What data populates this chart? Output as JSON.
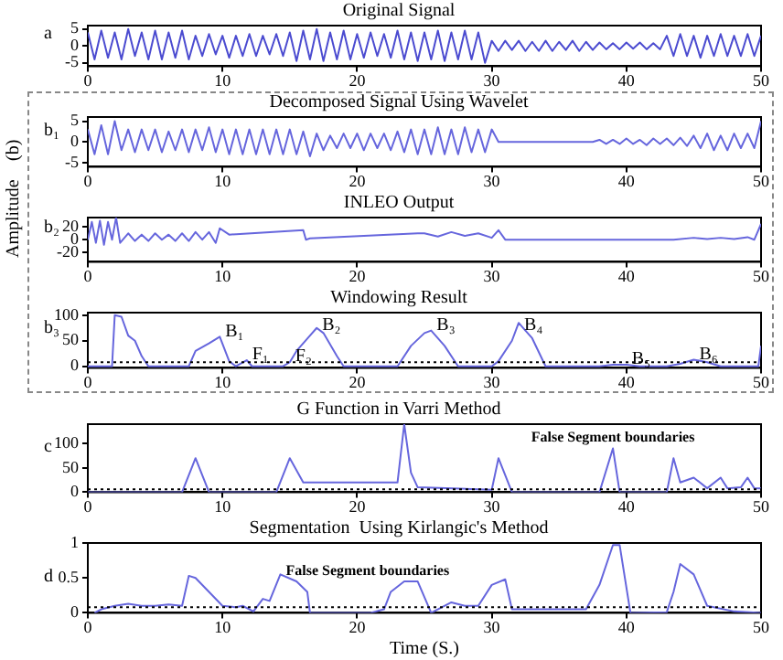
{
  "chart_data": [
    {
      "type": "line",
      "title": "Original Signal",
      "ylabel": "a",
      "xlim": [
        0,
        50
      ],
      "xticks": [
        0,
        10,
        20,
        30,
        40,
        50
      ],
      "ylim": [
        -6,
        6
      ],
      "yticks": [
        -5,
        0,
        5
      ],
      "series": [
        {
          "color": "#4b4bd0",
          "x": [
            0,
            0.5,
            1,
            1.5,
            2,
            2.5,
            3,
            3.5,
            4,
            4.5,
            5,
            5.5,
            6,
            6.5,
            7,
            7.5,
            8,
            8.5,
            9,
            9.5,
            10,
            10.5,
            11,
            11.5,
            12,
            12.5,
            13,
            13.5,
            14,
            14.5,
            15,
            15.5,
            16,
            16.5,
            17,
            17.5,
            18,
            18.5,
            19,
            19.5,
            20,
            20.5,
            21,
            21.5,
            22,
            22.5,
            23,
            23.5,
            24,
            24.5,
            25,
            25.5,
            26,
            26.5,
            27,
            27.5,
            28,
            28.5,
            29,
            29.5,
            30,
            30.5,
            31,
            31.5,
            32,
            32.5,
            33,
            33.5,
            34,
            34.5,
            35,
            35.5,
            36,
            36.5,
            37,
            37.5,
            38,
            38.5,
            39,
            39.5,
            40,
            40.5,
            41,
            41.5,
            42,
            42.5,
            43,
            43.5,
            44,
            44.5,
            45,
            45.5,
            46,
            46.5,
            47,
            47.5,
            48,
            48.5,
            49,
            49.5,
            50
          ],
          "values": [
            4,
            -4,
            4.5,
            -3.5,
            4,
            -4,
            5,
            -3,
            4,
            -4,
            4.5,
            -4,
            4,
            -3.5,
            4.5,
            -4,
            3,
            -3,
            3.5,
            -2.5,
            3,
            -3.5,
            3,
            -3,
            3.5,
            -3,
            3,
            -2.5,
            3.5,
            -3,
            4,
            -4.5,
            4.5,
            -4,
            5,
            -4.5,
            4,
            -4,
            4.5,
            -4,
            3.5,
            -3.5,
            4,
            -3,
            3.5,
            -3.5,
            4.5,
            -4,
            4,
            -4.5,
            4,
            -4,
            4.5,
            -4.5,
            4,
            -4,
            4.5,
            -4,
            4,
            -5,
            1.5,
            -1.5,
            1.5,
            -1.2,
            1.5,
            -1.5,
            1.2,
            -1.5,
            1.5,
            -1.5,
            1.2,
            -1.2,
            1.5,
            -1.5,
            1.2,
            -1.2,
            1,
            -1,
            0.8,
            -1,
            1,
            -0.8,
            1,
            -1,
            0.8,
            -1,
            3,
            -3,
            3.5,
            -3,
            3,
            -3.5,
            3,
            -3,
            3.5,
            -3,
            3,
            -3,
            3.5,
            -3,
            3
          ]
        }
      ]
    },
    {
      "type": "line",
      "title": "Decomposed Signal Using Wavelet",
      "ylabel": "b₁",
      "annotations": [
        "(b)"
      ],
      "xlim": [
        0,
        50
      ],
      "xticks": [
        0,
        10,
        20,
        30,
        40,
        50
      ],
      "ylim": [
        -6,
        6
      ],
      "yticks": [
        -5,
        0,
        5
      ],
      "series": [
        {
          "color": "#6666dd",
          "x": [
            0,
            0.5,
            1,
            1.5,
            2,
            2.5,
            3,
            3.5,
            4,
            4.5,
            5,
            5.5,
            6,
            6.5,
            7,
            7.5,
            8,
            8.5,
            9,
            9.5,
            10,
            10.5,
            11,
            11.5,
            12,
            12.5,
            13,
            13.5,
            14,
            14.5,
            15,
            15.5,
            16,
            16.5,
            17,
            17.5,
            18,
            18.5,
            19,
            19.5,
            20,
            20.5,
            21,
            21.5,
            22,
            22.5,
            23,
            23.5,
            24,
            24.5,
            25,
            25.5,
            26,
            26.5,
            27,
            27.5,
            28,
            28.5,
            29,
            29.5,
            30,
            30.5,
            31,
            31.5,
            32,
            32.5,
            33,
            33.5,
            34,
            34.5,
            35,
            35.5,
            36,
            36.5,
            37,
            37.5,
            38,
            38.5,
            39,
            39.5,
            40,
            40.5,
            41,
            41.5,
            42,
            42.5,
            43,
            43.5,
            44,
            44.5,
            45,
            45.5,
            46,
            46.5,
            47,
            47.5,
            48,
            48.5,
            49,
            49.5,
            50
          ],
          "values": [
            3,
            -3,
            4,
            -3,
            5,
            -2,
            3,
            -2.5,
            3,
            -2,
            3,
            -2.5,
            2.5,
            -2,
            3,
            -2.5,
            3,
            -2,
            3.5,
            -2.5,
            3,
            -3,
            3,
            -3,
            3,
            -3,
            3,
            -3,
            3,
            -3,
            3,
            -3,
            2.5,
            -3.5,
            2,
            -2,
            1.5,
            -1.5,
            2,
            -1.5,
            2,
            -2,
            2,
            -1.5,
            2,
            -2,
            2.5,
            -2.5,
            3,
            -3,
            3,
            -3,
            3.5,
            -3,
            3,
            -3,
            3.5,
            -2.5,
            3,
            -2.5,
            3,
            0,
            0,
            0,
            0,
            0,
            0,
            0,
            0,
            0,
            0,
            0,
            0,
            0,
            0,
            0,
            0.5,
            -0.5,
            0.5,
            -0.5,
            0.8,
            -0.5,
            0.5,
            -0.8,
            0.8,
            -0.5,
            0.8,
            -0.8,
            1,
            -1,
            1.5,
            -1.5,
            2,
            -2,
            1.5,
            -2,
            2,
            -1.5,
            2,
            -1.5,
            5
          ]
        }
      ]
    },
    {
      "type": "line",
      "title": "INLEO Output",
      "ylabel": "b₂",
      "annotations": [
        "Amplitude"
      ],
      "xlim": [
        0,
        50
      ],
      "xticks": [
        0,
        10,
        20,
        30,
        40,
        50
      ],
      "ylim": [
        -35,
        35
      ],
      "yticks": [
        -20,
        0,
        20
      ],
      "series": [
        {
          "color": "#6666dd",
          "x": [
            0,
            0.3,
            0.6,
            0.9,
            1.2,
            1.5,
            1.8,
            2.1,
            2.4,
            3,
            3.5,
            4,
            4.5,
            5,
            5.5,
            6,
            6.5,
            7,
            7.5,
            8,
            8.5,
            9,
            9.5,
            9.8,
            10.5,
            16,
            16.2,
            16.5,
            24.5,
            25,
            26,
            27,
            28,
            29,
            30,
            30.5,
            31,
            38,
            43.5,
            45,
            46,
            47,
            48,
            49,
            49.5,
            50
          ],
          "values": [
            0,
            28,
            -5,
            30,
            -8,
            28,
            0,
            35,
            -5,
            10,
            -2,
            8,
            -2,
            10,
            0,
            8,
            -2,
            10,
            -2,
            12,
            0,
            12,
            -5,
            18,
            8,
            15,
            0,
            2,
            10,
            10,
            5,
            12,
            6,
            10,
            3,
            15,
            0,
            0,
            0,
            3,
            1,
            3,
            1,
            4,
            0,
            25
          ]
        }
      ]
    },
    {
      "type": "line",
      "title": "Windowing Result",
      "ylabel": "b₃",
      "xlim": [
        0,
        50
      ],
      "xticks": [
        0,
        10,
        20,
        30,
        40,
        50
      ],
      "ylim": [
        -3,
        105
      ],
      "yticks": [
        0,
        50,
        100
      ],
      "ref_lines": [
        {
          "axis": "y",
          "value": 8,
          "line_style": "dotted",
          "color": "#000000"
        }
      ],
      "annotations": [
        {
          "text": "B₁",
          "x": 9.8,
          "y": 58
        },
        {
          "text": "F₁",
          "x": 11.8,
          "y": 12
        },
        {
          "text": "F₂",
          "x": 15,
          "y": 8
        },
        {
          "text": "B₂",
          "x": 17,
          "y": 75
        },
        {
          "text": "B₃",
          "x": 25.5,
          "y": 70
        },
        {
          "text": "B₄",
          "x": 32,
          "y": 85
        },
        {
          "text": "B₅",
          "x": 40,
          "y": 3
        },
        {
          "text": "B₆",
          "x": 45,
          "y": 13
        }
      ],
      "series": [
        {
          "color": "#6666dd",
          "x": [
            0,
            1.8,
            2,
            2.5,
            3,
            3.5,
            4,
            4.5,
            7.5,
            8,
            9,
            9.8,
            10.5,
            11,
            11.8,
            12.2,
            14.5,
            15,
            15.5,
            16.5,
            17,
            17.5,
            18.5,
            19,
            23,
            24,
            25,
            25.5,
            26.5,
            27.5,
            30,
            30.5,
            31.5,
            32,
            32.5,
            33,
            34,
            38,
            39,
            40,
            41,
            43,
            44,
            45,
            46,
            47,
            49.8,
            50
          ],
          "values": [
            0,
            0,
            100,
            97,
            60,
            50,
            20,
            0,
            0,
            30,
            45,
            58,
            10,
            0,
            12,
            0,
            0,
            8,
            30,
            60,
            75,
            65,
            20,
            0,
            0,
            40,
            65,
            70,
            40,
            0,
            0,
            10,
            50,
            85,
            70,
            55,
            0,
            0,
            3,
            3,
            0,
            0,
            5,
            13,
            8,
            0,
            0,
            40
          ]
        }
      ]
    },
    {
      "type": "line",
      "title": "G Function in Varri Method",
      "ylabel": "c",
      "xlim": [
        0,
        50
      ],
      "xticks": [
        0,
        10,
        20,
        30,
        40,
        50
      ],
      "ylim": [
        0,
        140
      ],
      "yticks": [
        0,
        50,
        100
      ],
      "ref_lines": [
        {
          "axis": "y",
          "value": 6,
          "line_style": "dotted",
          "color": "#000000"
        }
      ],
      "annotations": [
        {
          "text": "False Segment boundaries",
          "x": 39,
          "y": 90
        }
      ],
      "series": [
        {
          "color": "#6666dd",
          "x": [
            0,
            7,
            8,
            9,
            14,
            15,
            16,
            23,
            23.5,
            24,
            24.5,
            30,
            30.5,
            31.5,
            38,
            39,
            39.5,
            43,
            43.5,
            44,
            45,
            46,
            47,
            47.5,
            48.5,
            49,
            49.5,
            50
          ],
          "values": [
            0,
            0,
            70,
            0,
            0,
            70,
            20,
            20,
            140,
            40,
            10,
            5,
            70,
            0,
            0,
            90,
            0,
            0,
            70,
            20,
            30,
            8,
            30,
            8,
            10,
            30,
            8,
            8
          ]
        }
      ]
    },
    {
      "type": "line",
      "title": "Segmentation  Using Kirlangic's Method",
      "ylabel": "d",
      "xlabel": "Time (S.)",
      "xlim": [
        0,
        50
      ],
      "xticks": [
        0,
        10,
        20,
        30,
        40,
        50
      ],
      "ylim": [
        0,
        1
      ],
      "yticks": [
        0,
        0.5,
        1
      ],
      "ref_lines": [
        {
          "axis": "y",
          "value": 0.08,
          "line_style": "dotted",
          "color": "#000000"
        }
      ],
      "annotations": [
        {
          "text": "False Segment boundaries",
          "x": 14.3,
          "y": 0.55
        }
      ],
      "series": [
        {
          "color": "#6666dd",
          "x": [
            0.5,
            1,
            2,
            3,
            4,
            5,
            6,
            7,
            7.5,
            8,
            9,
            10,
            11,
            11.5,
            12.3,
            13,
            13.5,
            14.3,
            15.5,
            16.3,
            16.5,
            21,
            22,
            22.5,
            23.5,
            24.5,
            25.5,
            27,
            28,
            29,
            30,
            31,
            31.5,
            37,
            38,
            39,
            39.5,
            40.3,
            43,
            43.5,
            44,
            45,
            46,
            48,
            50
          ],
          "values": [
            0,
            0.05,
            0.1,
            0.13,
            0.1,
            0.1,
            0.12,
            0.1,
            0.53,
            0.5,
            0.3,
            0.1,
            0.08,
            0.1,
            0.02,
            0.2,
            0.17,
            0.55,
            0.45,
            0.3,
            0,
            0,
            0.05,
            0.3,
            0.45,
            0.45,
            0,
            0.15,
            0.1,
            0.1,
            0.4,
            0.48,
            0.05,
            0.05,
            0.4,
            0.97,
            0.97,
            0,
            0.01,
            0.3,
            0.7,
            0.55,
            0.1,
            0.02,
            0
          ]
        }
      ]
    }
  ]
}
